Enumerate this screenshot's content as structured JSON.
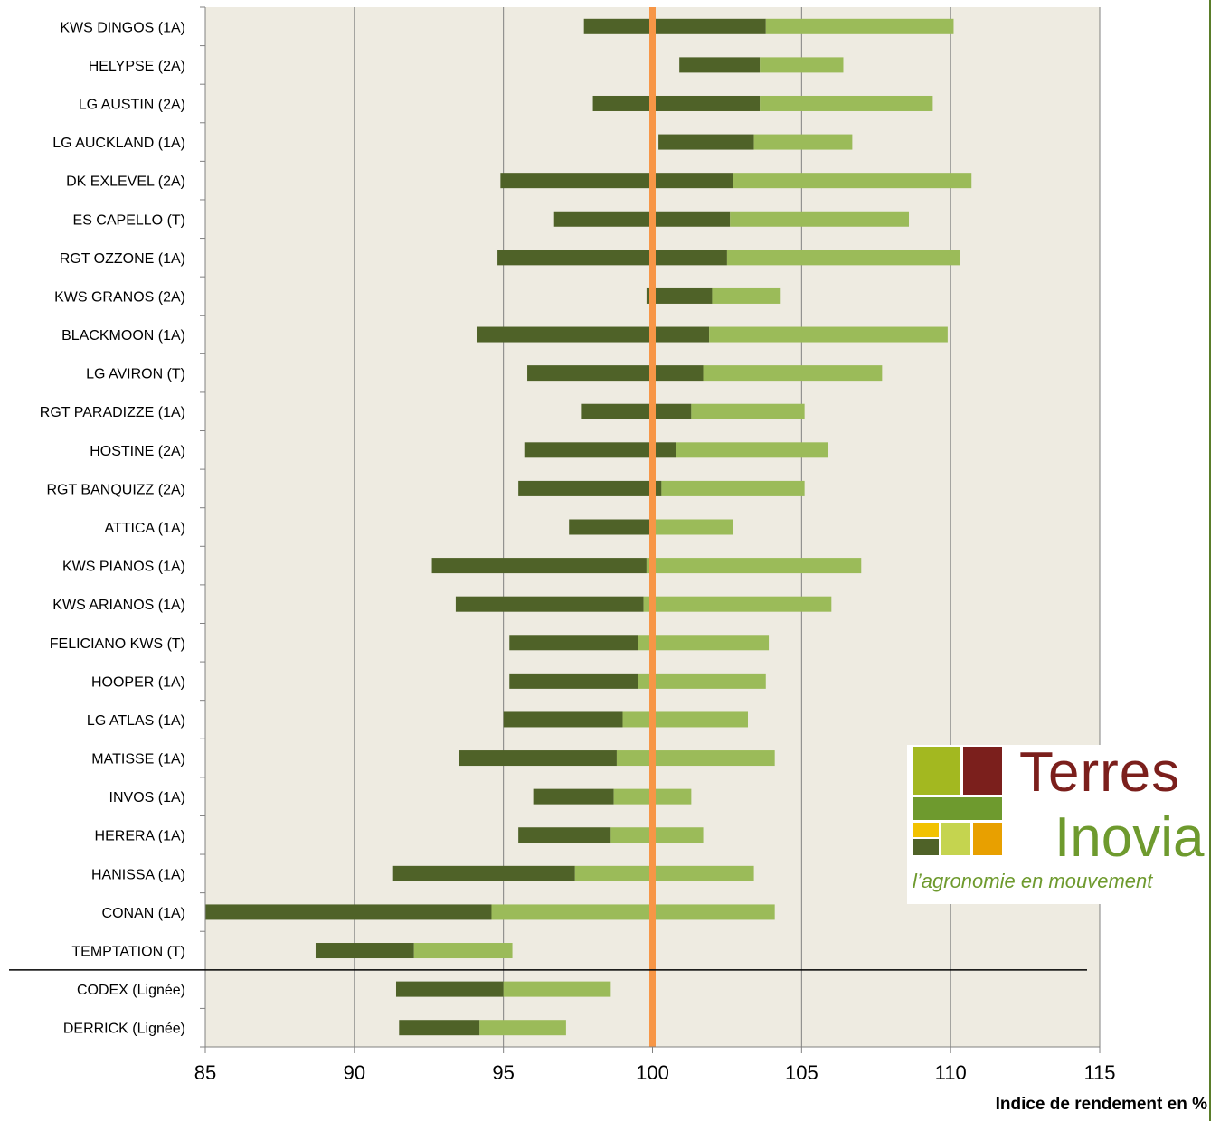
{
  "chart_data": {
    "type": "bar",
    "orientation": "horizontal",
    "stacked": true,
    "xlabel": "Indice de rendement en %",
    "xlim": [
      85,
      115
    ],
    "xticks": [
      85,
      90,
      95,
      100,
      105,
      110,
      115
    ],
    "grid": true,
    "reference_line": 100,
    "categories": [
      "KWS DINGOS (1A)",
      "HELYPSE (2A)",
      "LG AUSTIN (2A)",
      "LG AUCKLAND (1A)",
      "DK EXLEVEL (2A)",
      "ES CAPELLO (T)",
      "RGT OZZONE (1A)",
      "KWS GRANOS (2A)",
      "BLACKMOON (1A)",
      "LG AVIRON (T)",
      "RGT PARADIZZE (1A)",
      "HOSTINE (2A)",
      "RGT BANQUIZZ (2A)",
      "ATTICA (1A)",
      "KWS PIANOS (1A)",
      "KWS ARIANOS (1A)",
      "FELICIANO KWS (T)",
      "HOOPER (1A)",
      "LG ATLAS (1A)",
      "MATISSE (1A)",
      "INVOS (1A)",
      "HERERA (1A)",
      "HANISSA (1A)",
      "CONAN (1A)",
      "TEMPTATION (T)",
      "CODEX (Lignée)",
      "DERRICK (Lignée)"
    ],
    "series": [
      {
        "values_start": [
          97.7,
          100.9,
          98.0,
          100.2,
          94.9,
          96.7,
          94.8,
          99.8,
          94.1,
          95.8,
          97.6,
          95.7,
          95.5,
          97.2,
          92.6,
          93.4,
          95.2,
          95.2,
          95.0,
          93.5,
          96.0,
          95.5,
          91.3,
          85.0,
          88.7,
          91.4,
          91.5
        ]
      },
      {
        "values_end": [
          103.8,
          103.6,
          103.6,
          103.4,
          102.7,
          102.6,
          102.5,
          102.0,
          101.9,
          101.7,
          101.3,
          100.8,
          100.3,
          99.9,
          99.8,
          99.7,
          99.5,
          99.5,
          99.0,
          98.8,
          98.7,
          98.6,
          97.4,
          94.6,
          92.0,
          95.0,
          94.2
        ]
      },
      {
        "values_end": [
          110.1,
          106.4,
          109.4,
          106.7,
          110.7,
          108.6,
          110.3,
          104.3,
          109.9,
          107.7,
          105.1,
          105.9,
          105.1,
          102.7,
          107.0,
          106.0,
          103.9,
          103.8,
          103.2,
          104.1,
          101.3,
          101.7,
          103.4,
          104.1,
          95.3,
          98.6,
          97.1
        ]
      }
    ],
    "colors": {
      "dark_segment": "#4f6228",
      "light_segment": "#9bbb59",
      "reference_line": "#f79646",
      "plot_bg": "#eeebe1",
      "grid": "#808080"
    },
    "separator_after_category": "TEMPTATION (T)"
  },
  "logo": {
    "word1": "Terres",
    "word2": "Inovia",
    "tagline": "l’agronomie en mouvement",
    "colors": {
      "dark_red": "#7b1f1c",
      "green": "#6e9a2e",
      "olive": "#a3b820",
      "yellow": "#f2c200",
      "orange": "#e8a000",
      "lime": "#c5d44f",
      "dark_green": "#4f6228"
    }
  }
}
